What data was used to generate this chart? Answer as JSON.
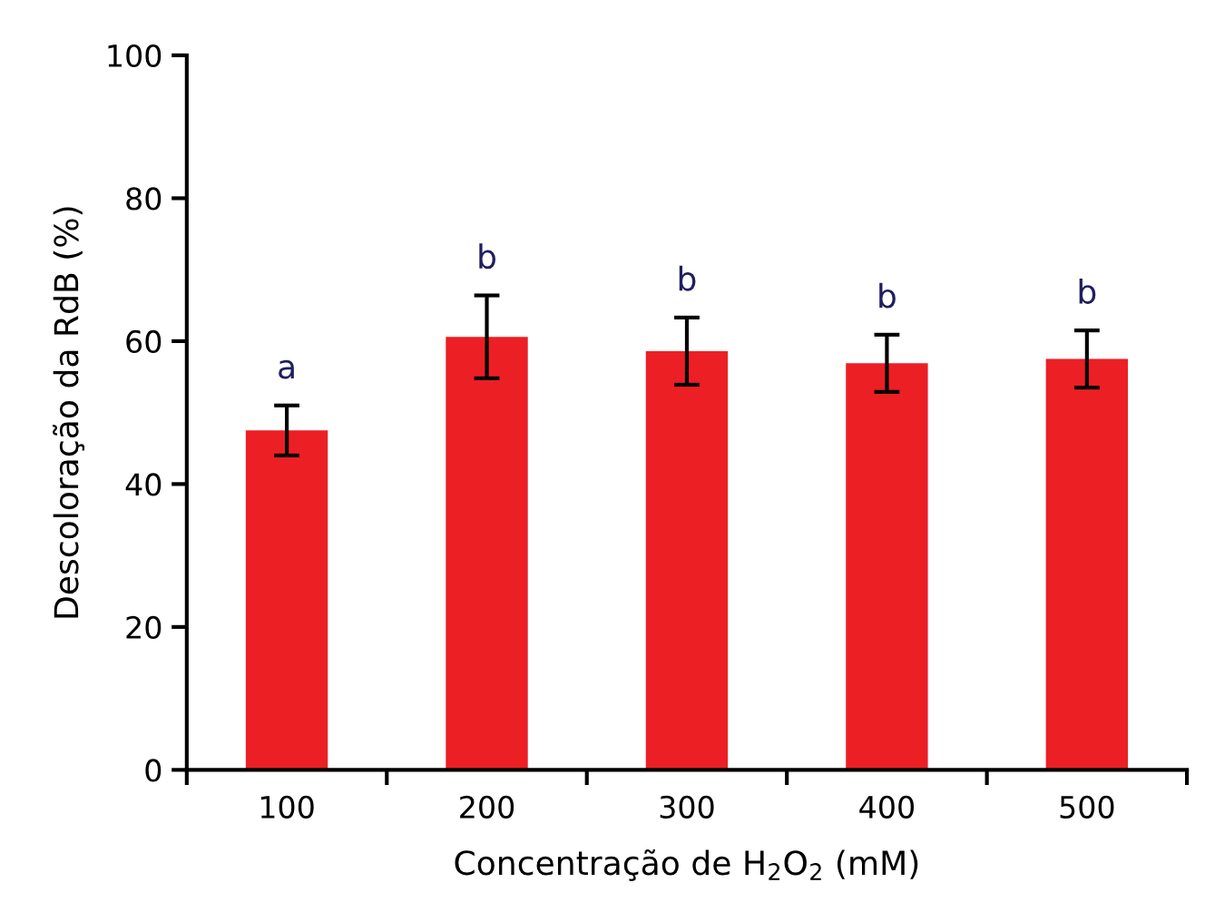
{
  "chart_data": {
    "type": "bar",
    "xlabel": "Concentração de H$_{2}$O$_{2}$ (mM)",
    "ylabel": "Descoloração da RdB (%)",
    "categories": [
      "100",
      "200",
      "300",
      "400",
      "500"
    ],
    "values": [
      47.5,
      60.6,
      58.6,
      56.9,
      57.5
    ],
    "errors": [
      3.5,
      5.8,
      4.7,
      4,
      4
    ],
    "color": "#ec1f24",
    "ylim": [
      0,
      100
    ],
    "yticks": [
      0,
      20,
      40,
      60,
      80,
      100
    ],
    "grid": false,
    "annotations": [
      {
        "text": "a",
        "x": "100",
        "y": 51
      },
      {
        "text": "b",
        "x": "200",
        "y": 66.4
      },
      {
        "text": "b",
        "x": "300",
        "y": 63.3
      },
      {
        "text": "b",
        "x": "400",
        "y": 60.9
      },
      {
        "text": "b",
        "x": "500",
        "y": 61.5
      }
    ]
  }
}
